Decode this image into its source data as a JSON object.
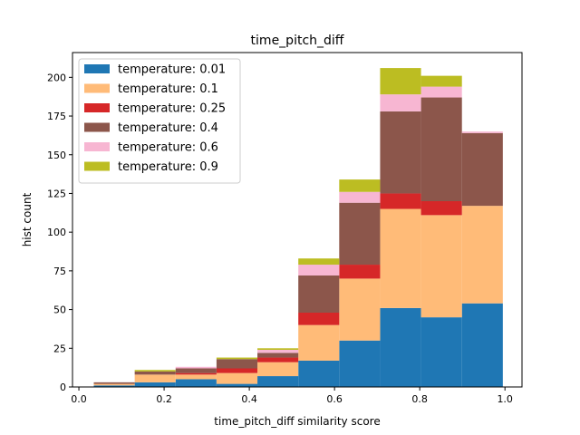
{
  "chart_data": {
    "type": "bar",
    "stacked": true,
    "title": "time_pitch_diff",
    "xlabel": "time_pitch_diff similarity score",
    "ylabel": "hist count",
    "xlim": [
      -0.015,
      1.04
    ],
    "ylim": [
      0,
      216
    ],
    "xticks": [
      0.0,
      0.2,
      0.4,
      0.6,
      0.8,
      1.0
    ],
    "xtick_labels": [
      "0.0",
      "0.2",
      "0.4",
      "0.6",
      "0.8",
      "1.0"
    ],
    "yticks": [
      0,
      25,
      50,
      75,
      100,
      125,
      150,
      175,
      200
    ],
    "ytick_labels": [
      "0",
      "25",
      "50",
      "75",
      "100",
      "125",
      "150",
      "175",
      "200"
    ],
    "grid": false,
    "legend_position": "top-left",
    "bin_edges": [
      0.035,
      0.131,
      0.227,
      0.323,
      0.419,
      0.515,
      0.611,
      0.707,
      0.803,
      0.899,
      0.995
    ],
    "series": [
      {
        "name": "temperature: 0.01",
        "color": "#1f77b4",
        "values": [
          1,
          3,
          5,
          2,
          7,
          17,
          30,
          51,
          45,
          54
        ]
      },
      {
        "name": "temperature: 0.1",
        "color": "#ffbb78",
        "values": [
          1,
          5,
          3,
          7,
          9,
          23,
          40,
          64,
          66,
          63
        ]
      },
      {
        "name": "temperature: 0.25",
        "color": "#d62728",
        "values": [
          0,
          0,
          1,
          3,
          3,
          8,
          9,
          10,
          9,
          0
        ]
      },
      {
        "name": "temperature: 0.4",
        "color": "#8c564b",
        "values": [
          1,
          2,
          3,
          6,
          3,
          24,
          40,
          53,
          67,
          47
        ]
      },
      {
        "name": "temperature: 0.6",
        "color": "#f7b6d2",
        "values": [
          0,
          0,
          1,
          0,
          2,
          7,
          7,
          11,
          7,
          1
        ]
      },
      {
        "name": "temperature: 0.9",
        "color": "#bcbd22",
        "values": [
          0,
          1,
          0,
          1,
          1,
          4,
          8,
          17,
          7,
          0
        ]
      }
    ]
  }
}
